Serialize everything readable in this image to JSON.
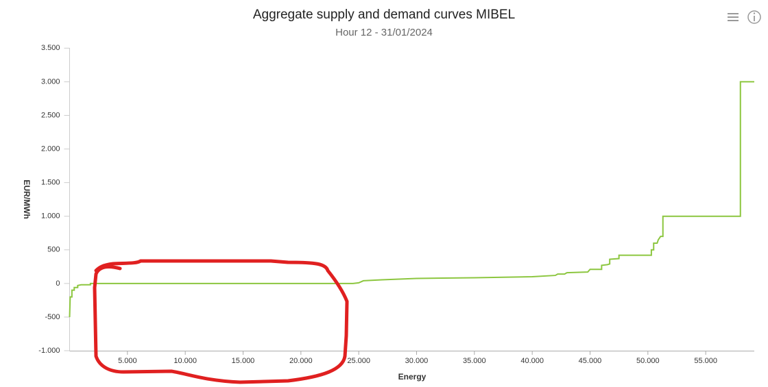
{
  "chart_data": {
    "type": "line",
    "title": "Aggregate supply and demand curves MIBEL",
    "subtitle": "Hour 12 - 31/01/2024",
    "x_label": "Energy",
    "y_label": "EUR/MWh",
    "x": [
      0,
      50,
      200,
      200,
      400,
      400,
      700,
      700,
      1000,
      1800,
      1800,
      24500,
      25000,
      25400,
      27000,
      30000,
      35000,
      40000,
      42000,
      42200,
      42800,
      43000,
      44800,
      45000,
      45700,
      46000,
      46000,
      46500,
      46700,
      46700,
      47500,
      47500,
      50300,
      50300,
      50500,
      50500,
      50800,
      50900,
      51100,
      51200,
      51300,
      51300,
      58000,
      58000,
      59200
    ],
    "series": [
      {
        "color": "#8cc63f",
        "values": [
          -500,
          -200,
          -200,
          -100,
          -100,
          -60,
          -60,
          -30,
          -20,
          -20,
          0,
          0,
          10,
          40,
          55,
          75,
          85,
          100,
          120,
          140,
          140,
          160,
          170,
          210,
          210,
          210,
          270,
          280,
          290,
          360,
          370,
          420,
          420,
          500,
          500,
          600,
          600,
          650,
          700,
          700,
          700,
          1000,
          1000,
          3000,
          3000
        ]
      }
    ],
    "xlim": [
      0,
      59200
    ],
    "xticks": [
      {
        "value": 5000,
        "label": "5.000"
      },
      {
        "value": 10000,
        "label": "10.000"
      },
      {
        "value": 15000,
        "label": "15.000"
      },
      {
        "value": 20000,
        "label": "20.000"
      },
      {
        "value": 25000,
        "label": "25.000"
      },
      {
        "value": 30000,
        "label": "30.000"
      },
      {
        "value": 35000,
        "label": "35.000"
      },
      {
        "value": 40000,
        "label": "40.000"
      },
      {
        "value": 45000,
        "label": "45.000"
      },
      {
        "value": 50000,
        "label": "50.000"
      },
      {
        "value": 55000,
        "label": "55.000"
      }
    ],
    "ylim": [
      -1000,
      3500
    ],
    "yticks": [
      {
        "value": -1000,
        "label": "-1.000"
      },
      -500,
      0,
      500,
      {
        "value": 1000,
        "label": "1.000"
      },
      {
        "value": 1500,
        "label": "1.500"
      },
      {
        "value": 2000,
        "label": "2.000"
      },
      {
        "value": 2500,
        "label": "2.500"
      },
      {
        "value": 3000,
        "label": "3.000"
      },
      {
        "value": 3500,
        "label": "3.500"
      }
    ],
    "grid": false
  }
}
